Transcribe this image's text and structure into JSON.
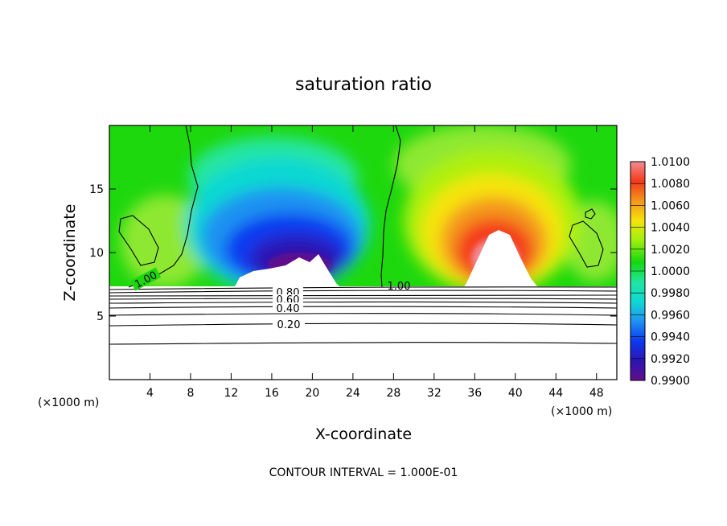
{
  "chart_data": {
    "type": "heatmap",
    "title": "saturation ratio",
    "xlabel": "X-coordinate",
    "ylabel": "Z-coordinate",
    "x_unit": "(×1000 m)",
    "x_unit_right": "(×1000 m)",
    "xlim": [
      0,
      50
    ],
    "ylim": [
      0,
      20
    ],
    "x_ticks": [
      4,
      8,
      12,
      16,
      20,
      24,
      28,
      32,
      36,
      40,
      44,
      48
    ],
    "y_ticks": [
      5,
      10,
      15
    ],
    "colorbar": {
      "range": [
        0.99,
        1.01
      ],
      "ticks": [
        "0.9900",
        "0.9920",
        "0.9940",
        "0.9960",
        "0.9980",
        "1.0000",
        "1.0020",
        "1.0040",
        "1.0060",
        "1.0080",
        "1.0100"
      ],
      "colors": [
        "#60108c",
        "#2c14b4",
        "#0c3af0",
        "#1e92f2",
        "#10d8d2",
        "#20e6a0",
        "#14d80e",
        "#9ef00c",
        "#f6e40a",
        "#f4961a",
        "#f43a1c",
        "#f48a92"
      ]
    },
    "contour_labels_upper": [
      "1.00",
      "1.00"
    ],
    "contour_labels_lower": [
      "0.80",
      "0.60",
      "0.40",
      "0.20"
    ],
    "footer": "CONTOUR INTERVAL = 1.000E-01"
  }
}
